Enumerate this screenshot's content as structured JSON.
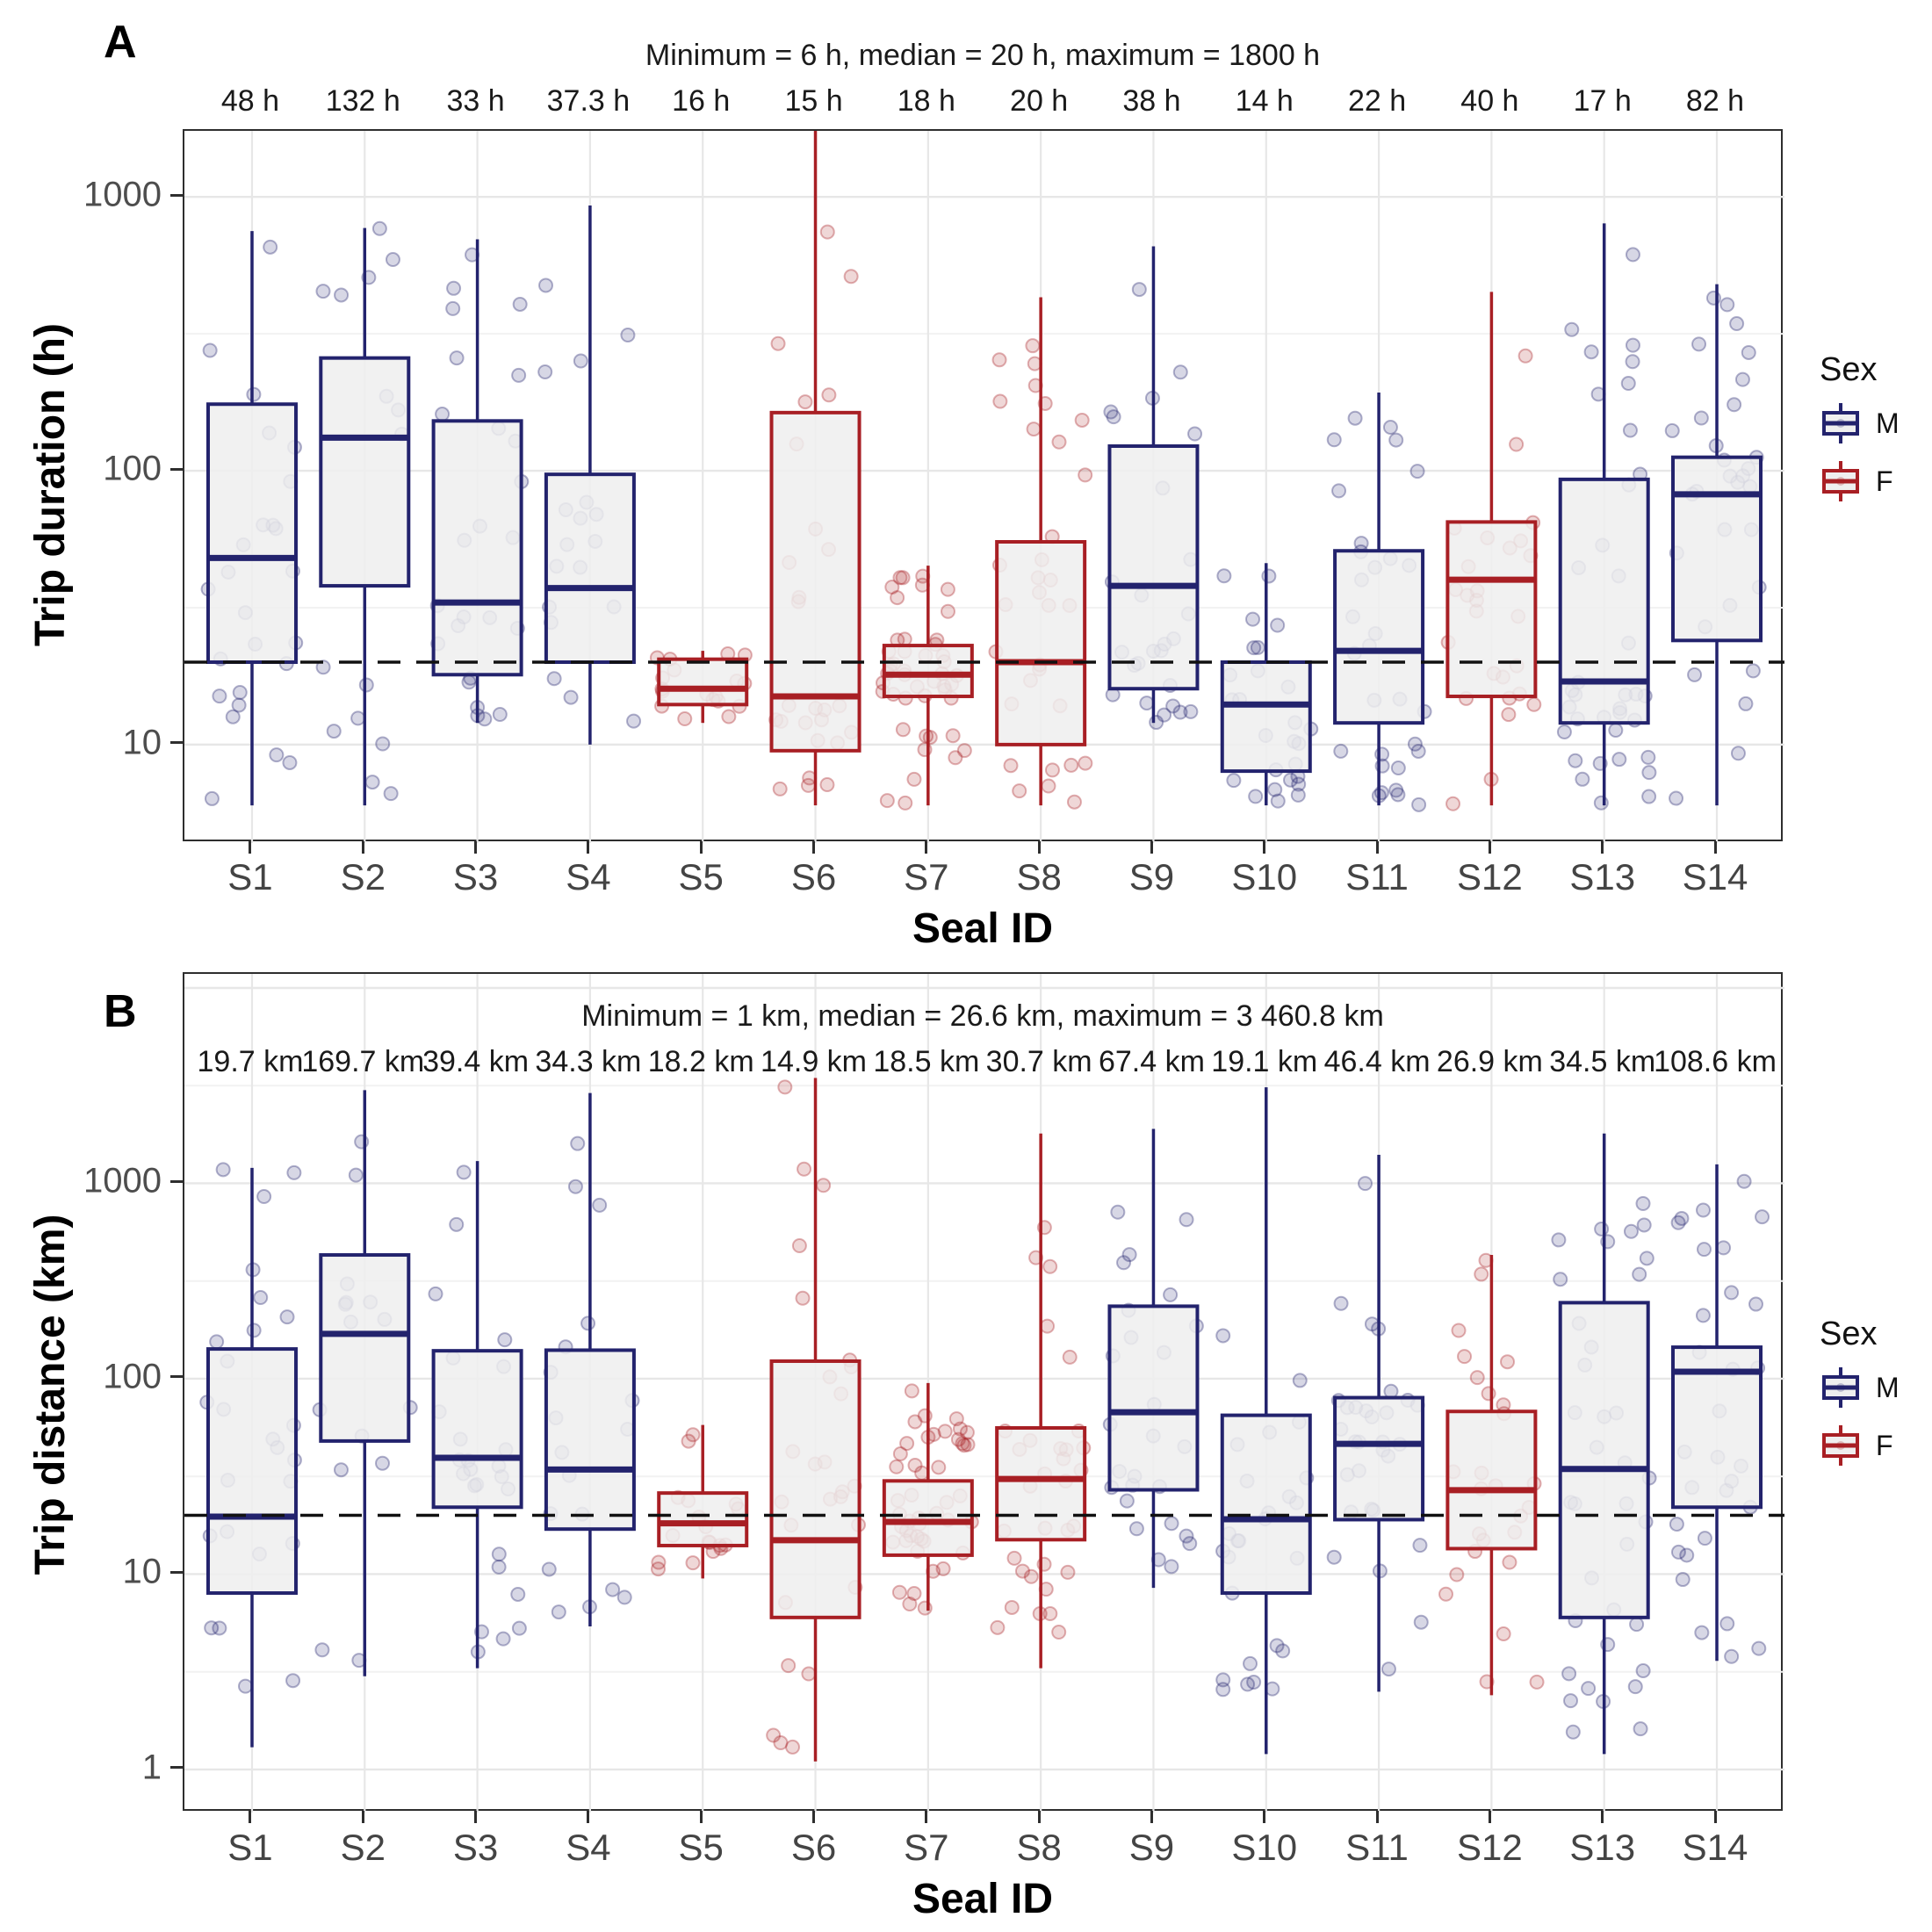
{
  "figure_bg": "#ffffff",
  "panels": [
    {
      "letter": "A"
    },
    {
      "letter": "B"
    }
  ],
  "legend": {
    "title": "Sex",
    "entries": [
      {
        "label": "M",
        "color": "#23236d"
      },
      {
        "label": "F",
        "color": "#a81f24"
      }
    ]
  },
  "colors": {
    "male": "#23236d",
    "female": "#a81f24",
    "box_fill": "#efefef",
    "grid_major": "#e7e7e7",
    "grid_minor": "#f2f2f2",
    "dashed_line": "#111111",
    "panel_border": "#2e2e2e",
    "tick_text": "#4d4d4d"
  },
  "chart_data": [
    {
      "type": "boxplot",
      "panel": "A",
      "title": "Minimum = 6 h, median = 20 h, maximum = 1800 h",
      "ylabel": "Trip duration (h)",
      "xlabel": "Seal ID",
      "unit": "h",
      "yscale": "log10",
      "ylim": [
        4.37,
        1742
      ],
      "yticks": [
        {
          "value": 1000,
          "label": "1000"
        },
        {
          "value": 100,
          "label": "100"
        },
        {
          "value": 10,
          "label": "10"
        }
      ],
      "dashed_line_value": 20,
      "legend_position": "right",
      "grid": true,
      "categories": [
        "S1",
        "S2",
        "S3",
        "S4",
        "S5",
        "S6",
        "S7",
        "S8",
        "S9",
        "S10",
        "S11",
        "S12",
        "S13",
        "S14"
      ],
      "median_labels": [
        "48 h",
        "132 h",
        "33 h",
        "37.3 h",
        "16 h",
        "15 h",
        "18 h",
        "20 h",
        "38 h",
        "14 h",
        "22 h",
        "40 h",
        "17 h",
        "82 h"
      ],
      "series": [
        {
          "seal": "S1",
          "sex": "M",
          "lo": 6,
          "q1": 20,
          "median": 48,
          "q3": 175,
          "hi": 750,
          "n_points": 25
        },
        {
          "seal": "S2",
          "sex": "M",
          "lo": 6,
          "q1": 38,
          "median": 132,
          "q3": 258,
          "hi": 770,
          "n_points": 15
        },
        {
          "seal": "S3",
          "sex": "M",
          "lo": 12,
          "q1": 18,
          "median": 33,
          "q3": 152,
          "hi": 700,
          "n_points": 25
        },
        {
          "seal": "S4",
          "sex": "M",
          "lo": 10,
          "q1": 20,
          "median": 37.3,
          "q3": 97,
          "hi": 930,
          "n_points": 18
        },
        {
          "seal": "S5",
          "sex": "F",
          "lo": 12,
          "q1": 14,
          "median": 16,
          "q3": 20.5,
          "hi": 22,
          "n_points": 18
        },
        {
          "seal": "S6",
          "sex": "F",
          "lo": 6,
          "q1": 9.5,
          "median": 15,
          "q3": 163,
          "hi": 1800,
          "n_points": 26
        },
        {
          "seal": "S7",
          "sex": "F",
          "lo": 6,
          "q1": 15,
          "median": 18,
          "q3": 23,
          "hi": 45,
          "n_points": 46
        },
        {
          "seal": "S8",
          "sex": "F",
          "lo": 6,
          "q1": 10,
          "median": 20,
          "q3": 55,
          "hi": 430,
          "n_points": 32
        },
        {
          "seal": "S9",
          "sex": "M",
          "lo": 12,
          "q1": 16,
          "median": 38,
          "q3": 123,
          "hi": 660,
          "n_points": 26
        },
        {
          "seal": "S10",
          "sex": "M",
          "lo": 6,
          "q1": 8,
          "median": 14,
          "q3": 20,
          "hi": 46,
          "n_points": 26
        },
        {
          "seal": "S11",
          "sex": "M",
          "lo": 6,
          "q1": 12,
          "median": 22,
          "q3": 51,
          "hi": 193,
          "n_points": 30
        },
        {
          "seal": "S12",
          "sex": "F",
          "lo": 6,
          "q1": 15,
          "median": 40,
          "q3": 65,
          "hi": 450,
          "n_points": 26
        },
        {
          "seal": "S13",
          "sex": "M",
          "lo": 6,
          "q1": 12,
          "median": 17,
          "q3": 93,
          "hi": 800,
          "n_points": 36
        },
        {
          "seal": "S14",
          "sex": "M",
          "lo": 6,
          "q1": 24,
          "median": 82,
          "q3": 112,
          "hi": 480,
          "n_points": 30
        }
      ]
    },
    {
      "type": "boxplot",
      "panel": "B",
      "title": "Minimum = 1 km, median = 26.6 km, maximum = 3 460.8 km",
      "ylabel": "Trip distance (km)",
      "xlabel": "Seal ID",
      "unit": "km",
      "yscale": "log10",
      "ylim": [
        0.602,
        11800
      ],
      "yticks": [
        {
          "value": 1000,
          "label": "1000"
        },
        {
          "value": 100,
          "label": "100"
        },
        {
          "value": 10,
          "label": "10"
        },
        {
          "value": 1,
          "label": "1"
        }
      ],
      "dashed_line_value": 20,
      "legend_position": "right",
      "grid": true,
      "categories": [
        "S1",
        "S2",
        "S3",
        "S4",
        "S5",
        "S6",
        "S7",
        "S8",
        "S9",
        "S10",
        "S11",
        "S12",
        "S13",
        "S14"
      ],
      "median_labels": [
        "19.7 km",
        "169.7 km",
        "39.4 km",
        "34.3 km",
        "18.2 km",
        "14.9 km",
        "18.5 km",
        "30.7 km",
        "67.4 km",
        "19.1 km",
        "46.4 km",
        "26.9 km",
        "34.5 km",
        "108.6 km"
      ],
      "series": [
        {
          "seal": "S1",
          "sex": "M",
          "lo": 1.3,
          "q1": 8,
          "median": 19.7,
          "q3": 142,
          "hi": 1200,
          "n_points": 25
        },
        {
          "seal": "S2",
          "sex": "M",
          "lo": 3.0,
          "q1": 48,
          "median": 169.7,
          "q3": 430,
          "hi": 3000,
          "n_points": 15
        },
        {
          "seal": "S3",
          "sex": "M",
          "lo": 3.3,
          "q1": 22,
          "median": 39.4,
          "q3": 139,
          "hi": 1300,
          "n_points": 25
        },
        {
          "seal": "S4",
          "sex": "M",
          "lo": 5.4,
          "q1": 17,
          "median": 34.3,
          "q3": 140,
          "hi": 2900,
          "n_points": 18
        },
        {
          "seal": "S5",
          "sex": "F",
          "lo": 9.5,
          "q1": 14,
          "median": 18.2,
          "q3": 26,
          "hi": 58,
          "n_points": 18
        },
        {
          "seal": "S6",
          "sex": "F",
          "lo": 1.1,
          "q1": 6,
          "median": 14.9,
          "q3": 123,
          "hi": 3460.8,
          "n_points": 26
        },
        {
          "seal": "S7",
          "sex": "F",
          "lo": 6.5,
          "q1": 12.5,
          "median": 18.5,
          "q3": 30,
          "hi": 95,
          "n_points": 46
        },
        {
          "seal": "S8",
          "sex": "F",
          "lo": 3.3,
          "q1": 15,
          "median": 30.7,
          "q3": 56,
          "hi": 1800,
          "n_points": 32
        },
        {
          "seal": "S9",
          "sex": "M",
          "lo": 8.5,
          "q1": 27,
          "median": 67.4,
          "q3": 235,
          "hi": 1900,
          "n_points": 26
        },
        {
          "seal": "S10",
          "sex": "M",
          "lo": 1.2,
          "q1": 8,
          "median": 19.1,
          "q3": 65,
          "hi": 3100,
          "n_points": 26
        },
        {
          "seal": "S11",
          "sex": "M",
          "lo": 2.5,
          "q1": 19,
          "median": 46.4,
          "q3": 80,
          "hi": 1400,
          "n_points": 30
        },
        {
          "seal": "S12",
          "sex": "F",
          "lo": 2.4,
          "q1": 13.5,
          "median": 26.9,
          "q3": 68,
          "hi": 430,
          "n_points": 26
        },
        {
          "seal": "S13",
          "sex": "M",
          "lo": 1.2,
          "q1": 6,
          "median": 34.5,
          "q3": 245,
          "hi": 1800,
          "n_points": 36
        },
        {
          "seal": "S14",
          "sex": "M",
          "lo": 3.6,
          "q1": 22,
          "median": 108.6,
          "q3": 145,
          "hi": 1250,
          "n_points": 30
        }
      ]
    }
  ]
}
